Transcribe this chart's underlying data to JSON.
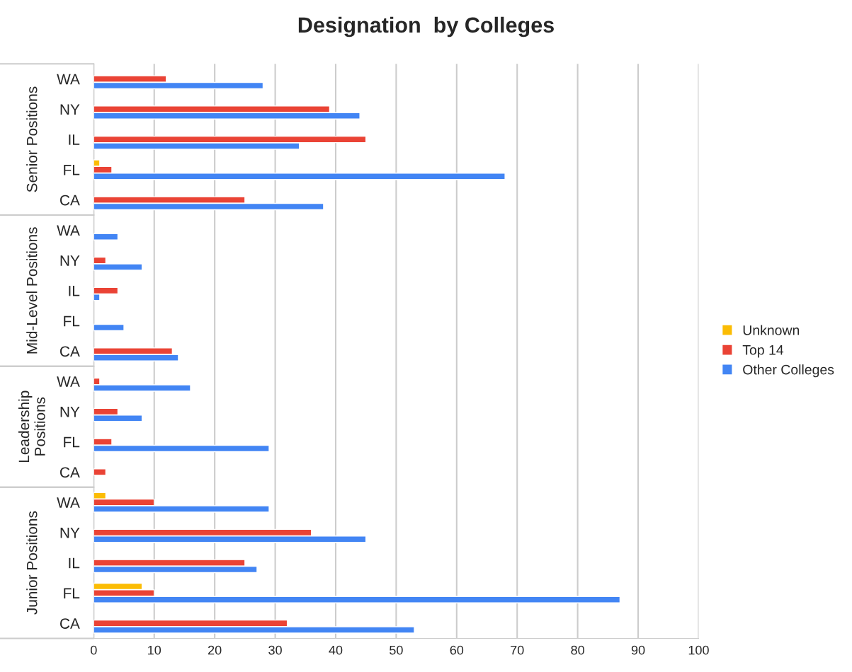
{
  "chart_data": {
    "type": "bar",
    "orientation": "horizontal",
    "title": "Designation  by Colleges",
    "categories": [
      "WA",
      "NY",
      "IL",
      "FL",
      "CA",
      "WA",
      "NY",
      "IL",
      "FL",
      "CA",
      "WA",
      "NY",
      "FL",
      "CA",
      "WA",
      "NY",
      "IL",
      "FL",
      "CA"
    ],
    "series": [
      {
        "name": "Unknown",
        "color": "#fbbc04",
        "values": [
          null,
          null,
          null,
          1,
          null,
          null,
          null,
          null,
          null,
          null,
          null,
          null,
          null,
          null,
          2,
          null,
          null,
          8,
          null
        ]
      },
      {
        "name": "Top 14",
        "color": "#ea4335",
        "values": [
          12,
          39,
          45,
          3,
          25,
          null,
          2,
          4,
          null,
          13,
          1,
          4,
          3,
          2,
          10,
          36,
          25,
          10,
          32
        ]
      },
      {
        "name": "Other Colleges",
        "color": "#4285f4",
        "values": [
          28,
          44,
          34,
          68,
          38,
          4,
          8,
          1,
          5,
          14,
          16,
          8,
          29,
          null,
          29,
          45,
          27,
          87,
          53
        ]
      }
    ],
    "annotations": [
      "Senior Positions",
      "Mid-Level Positions",
      "Leadership\nPositions",
      "Junior Positions"
    ],
    "xlim": [
      0,
      100
    ],
    "xticks": [
      0,
      10,
      20,
      30,
      40,
      50,
      60,
      70,
      80,
      90,
      100
    ],
    "grid": "x",
    "legend": "right"
  }
}
